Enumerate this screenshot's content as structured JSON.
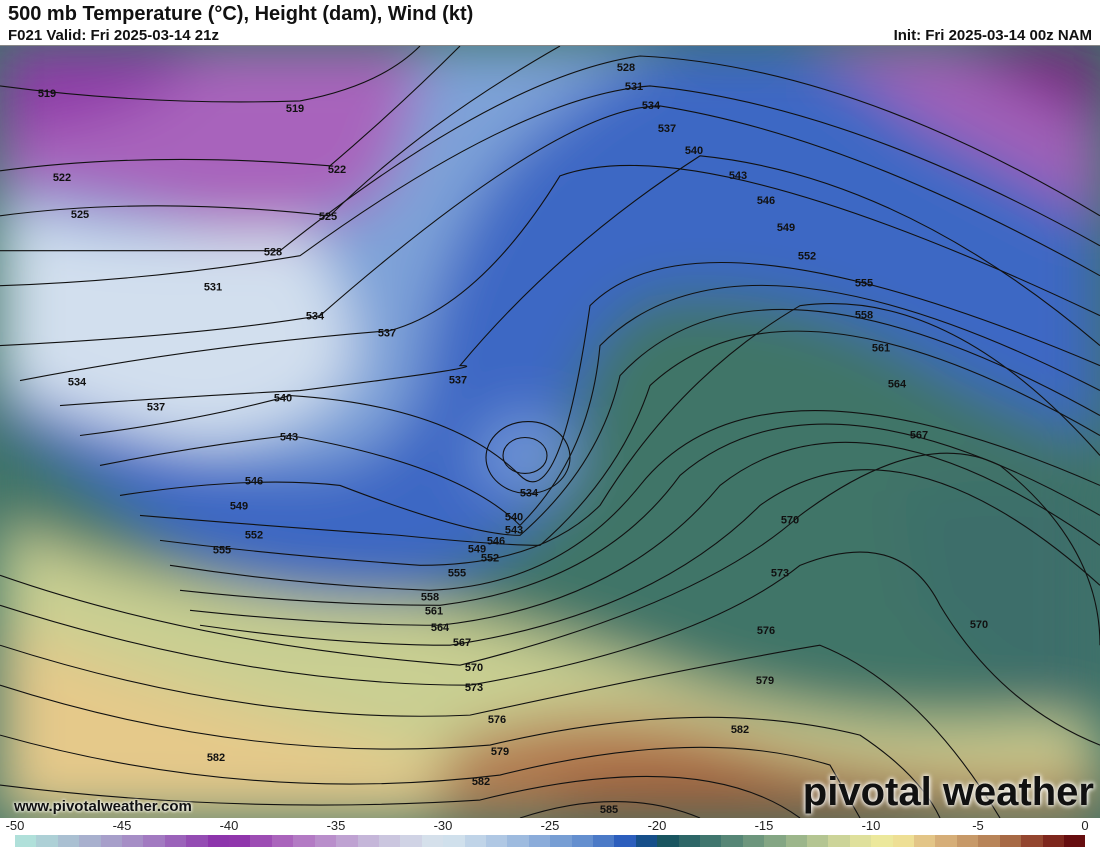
{
  "header": {
    "title": "500 mb Temperature (°C), Height (dam), Wind (kt)",
    "valid": "F021 Valid: Fri 2025-03-14 21z",
    "init": "Init: Fri 2025-03-14 00z NAM"
  },
  "footer": {
    "website": "www.pivotalweather.com",
    "logo": "pivotal weather"
  },
  "colorbar": {
    "units": "°C",
    "min": -50,
    "max": 0,
    "ticks": [
      "-50",
      "-45",
      "-40",
      "-35",
      "-30",
      "-25",
      "-20",
      "-15",
      "-10",
      "-5",
      "0"
    ],
    "anchor_colors": {
      "-50": "#b2e8dc",
      "-47": "#a8b8d0",
      "-44": "#a585c4",
      "-40": "#8a2aa8",
      "-37": "#b070c0",
      "-33": "#c8c0dc",
      "-30": "#d8e6ee",
      "-27": "#a8c2e2",
      "-23": "#5a88cc",
      "-21": "#1c50b8",
      "-20": "#0f4d5c",
      "-17": "#4a7e72",
      "-14": "#90ae88",
      "-11": "#d8dc9c",
      "-9": "#f3ec9c",
      "-7": "#ddb880",
      "-4": "#b07a50",
      "-2": "#8a3424",
      "0": "#5a0008"
    }
  },
  "contour_labels": {
    "h519": "519",
    "h522": "522",
    "h525": "525",
    "h528": "528",
    "h531": "531",
    "h534": "534",
    "h537": "537",
    "h540": "540",
    "h543": "543",
    "h546": "546",
    "h549": "549",
    "h552": "552",
    "h555": "555",
    "h558": "558",
    "h561": "561",
    "h564": "564",
    "h567": "567",
    "h570": "570",
    "h573": "573",
    "h576": "576",
    "h579": "579",
    "h582": "582",
    "h585": "585"
  }
}
